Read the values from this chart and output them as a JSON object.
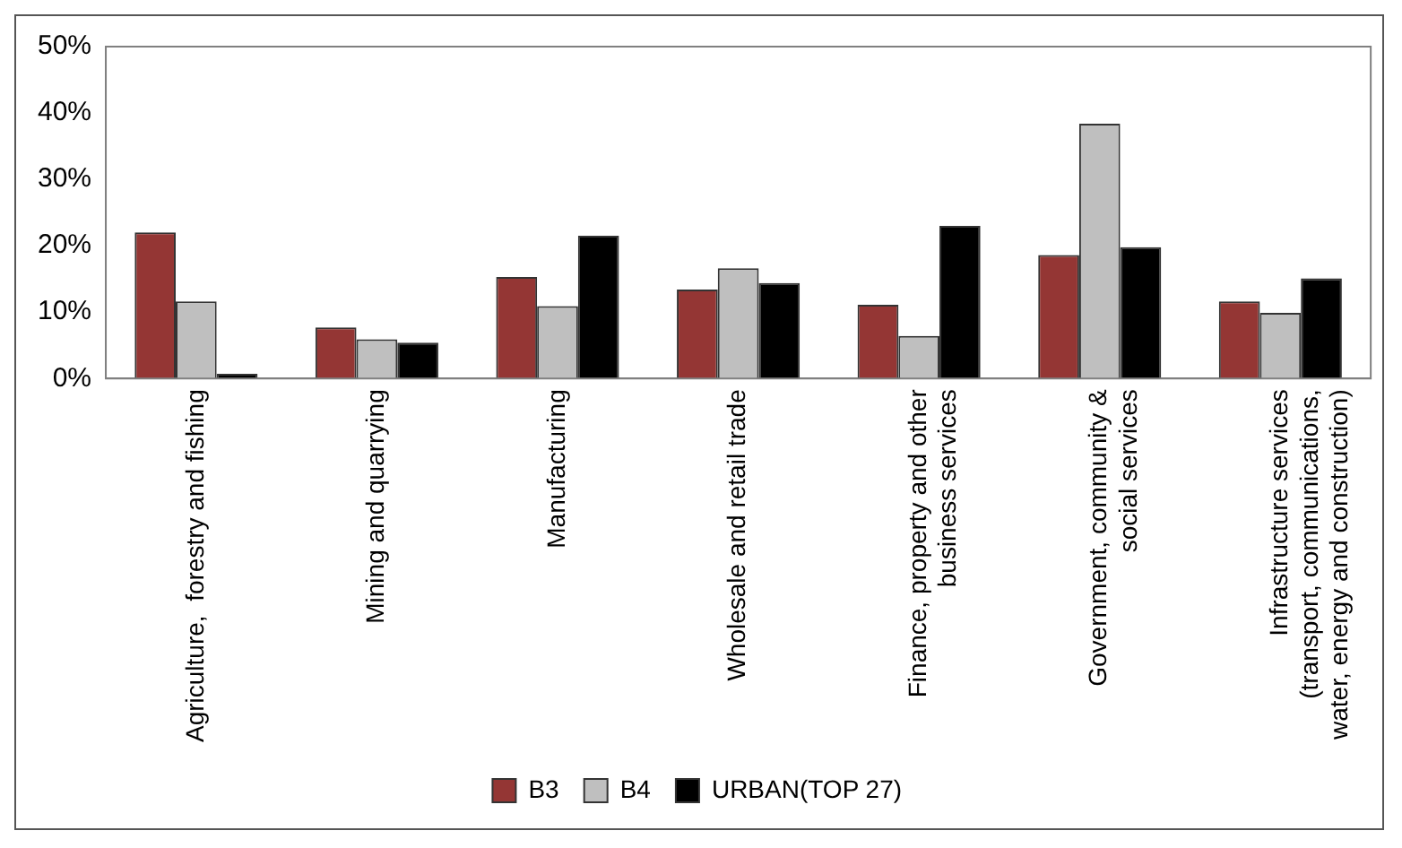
{
  "chart_data": {
    "type": "bar",
    "categories": [
      "Agriculture,  forestry and fishing",
      "Mining and quarrying",
      "Manufacturing",
      "Wholesale and retail trade",
      "Finance, property and other\nbusiness services",
      "Government, community &\nsocial services",
      "Infrastructure services\n(transport, communications,\nwater, energy and construction)"
    ],
    "series": [
      {
        "name": "B3",
        "color": "#943634",
        "values": [
          0.22,
          0.077,
          0.153,
          0.134,
          0.111,
          0.186,
          0.116
        ]
      },
      {
        "name": "B4",
        "color": "#bfbfbf",
        "values": [
          0.116,
          0.059,
          0.109,
          0.166,
          0.064,
          0.384,
          0.099
        ]
      },
      {
        "name": "URBAN(TOP 27)",
        "color": "#000000",
        "values": [
          0.007,
          0.054,
          0.215,
          0.144,
          0.23,
          0.198,
          0.151
        ]
      }
    ],
    "ylim": [
      0,
      0.5
    ],
    "yticks": [
      {
        "value": 0,
        "label": "0%"
      },
      {
        "value": 0.1,
        "label": "10%"
      },
      {
        "value": 0.2,
        "label": "20%"
      },
      {
        "value": 0.3,
        "label": "30%"
      },
      {
        "value": 0.4,
        "label": "40%"
      },
      {
        "value": 0.5,
        "label": "50%"
      }
    ],
    "grid": false,
    "legend": "bottom"
  }
}
